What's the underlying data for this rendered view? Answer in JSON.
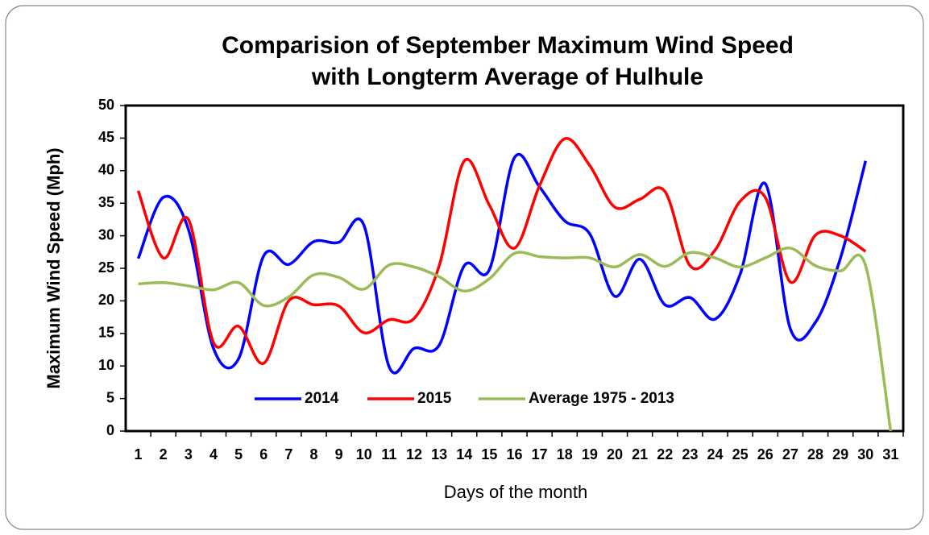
{
  "chart_data": {
    "type": "line",
    "title": [
      "Comparision of September Maximum Wind Speed",
      "with Longterm Average of Hulhule"
    ],
    "x_label": "Days of the month",
    "y_label": "Maximum Wind Speed (Mph)",
    "categories": [
      "1",
      "2",
      "3",
      "4",
      "5",
      "6",
      "7",
      "8",
      "9",
      "10",
      "11",
      "12",
      "13",
      "14",
      "15",
      "16",
      "17",
      "18",
      "19",
      "20",
      "21",
      "22",
      "23",
      "24",
      "25",
      "26",
      "27",
      "28",
      "29",
      "30",
      "31"
    ],
    "series": [
      {
        "name": "2014",
        "color": "#0000ff",
        "values": [
          26.5,
          35.9,
          31,
          12.7,
          11.1,
          26.9,
          25.6,
          29.1,
          29,
          31.6,
          9.9,
          12.7,
          13.2,
          25.4,
          24.8,
          42,
          37.5,
          32.3,
          30.3,
          20.7,
          26.4,
          19.4,
          20.5,
          17.2,
          24.1,
          38,
          15.7,
          16.7,
          26.6,
          41.5,
          null
        ]
      },
      {
        "name": "2015",
        "color": "#ff0000",
        "values": [
          36.9,
          26.6,
          32.5,
          13.6,
          16.1,
          10.4,
          20,
          19.4,
          19.2,
          15.1,
          17.1,
          17.3,
          25.4,
          41.5,
          34.7,
          28.1,
          37.7,
          44.9,
          40.8,
          34.4,
          35.6,
          36.8,
          25.4,
          27.8,
          35.3,
          35.9,
          22.9,
          30.1,
          30,
          27.6,
          null
        ]
      },
      {
        "name": "Average 1975 - 2013",
        "color": "#9bbb59",
        "values": [
          22.6,
          22.8,
          22.3,
          21.7,
          22.8,
          19.3,
          20.6,
          24,
          23.6,
          21.8,
          25.5,
          25.2,
          23.7,
          21.5,
          23.4,
          27.3,
          26.8,
          26.6,
          26.6,
          25.2,
          27.1,
          25.3,
          27.4,
          26.6,
          25.2,
          26.6,
          28.1,
          25.4,
          24.6,
          25.4,
          0
        ]
      }
    ],
    "ylim": [
      0,
      50
    ],
    "yticks": [
      0,
      5,
      10,
      15,
      20,
      25,
      30,
      35,
      40,
      45,
      50
    ],
    "smooth": true
  }
}
